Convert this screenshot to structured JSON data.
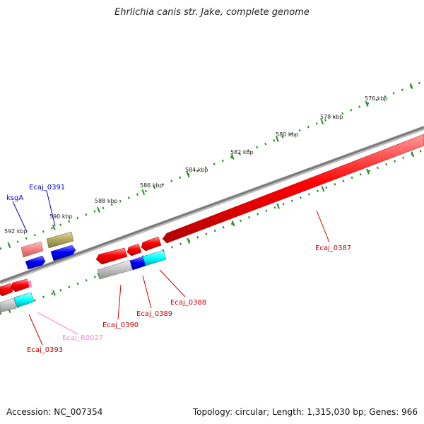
{
  "title": "Ehrlichia canis str. Jake, complete genome",
  "footer": {
    "accession": "Accession: NC_007354",
    "summary": "Topology: circular; Length: 1,315,030 bp; Genes: 966"
  },
  "colors": {
    "backbone": "#808080",
    "ticks": "#2a8a2a",
    "gene_red": "#ff0000",
    "gene_blue": "#0000ff",
    "gene_olive": "#b0a860",
    "gene_salmon": "#f08080",
    "gene_cyan": "#00ffff",
    "gene_gray": "#c0c0c0",
    "label_red": "#cc0000",
    "label_blue": "#0000cc",
    "label_pink": "#ff88cc"
  },
  "scale_labels": [
    "576 kbp",
    "578 kbp",
    "580 kbp",
    "582 kbp",
    "584 kbp",
    "586 kbp",
    "588 kbp",
    "590 kbp",
    "592 kbp"
  ],
  "gene_labels": [
    {
      "text": "Ecaj_0387",
      "color": "label_red"
    },
    {
      "text": "Ecaj_0388",
      "color": "label_red"
    },
    {
      "text": "Ecaj_0389",
      "color": "label_red"
    },
    {
      "text": "Ecaj_0390",
      "color": "label_red"
    },
    {
      "text": "Ecaj_0391",
      "color": "label_blue"
    },
    {
      "text": "ksgA",
      "color": "label_blue"
    },
    {
      "text": "Ecaj_0393",
      "color": "label_red"
    },
    {
      "text": "Ecaj_R0027",
      "color": "label_pink"
    }
  ]
}
